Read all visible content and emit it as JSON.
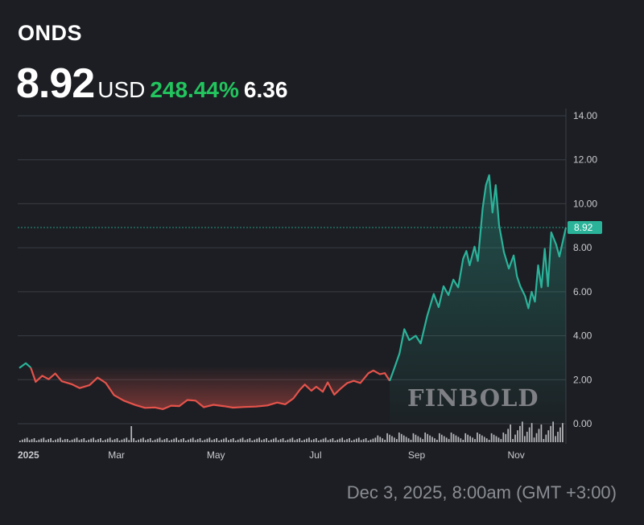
{
  "header": {
    "ticker": "ONDS",
    "price": "8.92",
    "currency": "USD",
    "change_pct": "248.44%",
    "change_abs": "6.36"
  },
  "footer": {
    "timestamp": "Dec 3, 2025, 8:00am (GMT +3:00)"
  },
  "watermark": "FINBOLD",
  "colors": {
    "background": "#1c1e23",
    "up": "#2bb39a",
    "down": "#e5534b",
    "change_positive": "#22c55e",
    "grid": "#3a3d44"
  },
  "chart_data": {
    "type": "line",
    "title": "",
    "xlabel": "",
    "ylabel": "",
    "x_ticks": [
      "2025",
      "Mar",
      "May",
      "Jul",
      "Sep",
      "Nov"
    ],
    "y_ticks": [
      "14.00",
      "12.00",
      "10.00",
      "8.00",
      "6.00",
      "4.00",
      "2.00",
      "0.00"
    ],
    "ylim": [
      0,
      14
    ],
    "grid": true,
    "current_value_label": "8.92",
    "current_value": 8.92,
    "baseline_value": 2.56,
    "series": [
      {
        "values": [
          [
            "2025-01-02",
            2.53
          ],
          [
            "2025-01-06",
            2.75
          ],
          [
            "2025-01-09",
            2.55
          ],
          [
            "2025-01-12",
            1.9
          ],
          [
            "2025-01-16",
            2.18
          ],
          [
            "2025-01-20",
            2.02
          ],
          [
            "2025-01-24",
            2.28
          ],
          [
            "2025-01-28",
            1.93
          ],
          [
            "2025-02-03",
            1.8
          ],
          [
            "2025-02-08",
            1.62
          ],
          [
            "2025-02-14",
            1.75
          ],
          [
            "2025-02-19",
            2.1
          ],
          [
            "2025-02-24",
            1.85
          ],
          [
            "2025-03-01",
            1.3
          ],
          [
            "2025-03-07",
            1.05
          ],
          [
            "2025-03-14",
            0.85
          ],
          [
            "2025-03-20",
            0.72
          ],
          [
            "2025-03-26",
            0.74
          ],
          [
            "2025-03-31",
            0.66
          ],
          [
            "2025-04-05",
            0.82
          ],
          [
            "2025-04-10",
            0.8
          ],
          [
            "2025-04-15",
            1.08
          ],
          [
            "2025-04-20",
            1.05
          ],
          [
            "2025-04-25",
            0.75
          ],
          [
            "2025-05-01",
            0.86
          ],
          [
            "2025-05-07",
            0.8
          ],
          [
            "2025-05-13",
            0.73
          ],
          [
            "2025-05-20",
            0.76
          ],
          [
            "2025-05-27",
            0.78
          ],
          [
            "2025-06-03",
            0.83
          ],
          [
            "2025-06-09",
            0.96
          ],
          [
            "2025-06-14",
            0.88
          ],
          [
            "2025-06-19",
            1.15
          ],
          [
            "2025-06-23",
            1.55
          ],
          [
            "2025-06-26",
            1.78
          ],
          [
            "2025-06-30",
            1.5
          ],
          [
            "2025-07-03",
            1.68
          ],
          [
            "2025-07-07",
            1.45
          ],
          [
            "2025-07-10",
            1.88
          ],
          [
            "2025-07-14",
            1.32
          ],
          [
            "2025-07-18",
            1.6
          ],
          [
            "2025-07-22",
            1.85
          ],
          [
            "2025-07-26",
            1.95
          ],
          [
            "2025-07-30",
            1.85
          ],
          [
            "2025-08-04",
            2.3
          ],
          [
            "2025-08-07",
            2.42
          ],
          [
            "2025-08-11",
            2.25
          ],
          [
            "2025-08-14",
            2.3
          ],
          [
            "2025-08-17",
            1.95
          ],
          [
            "2025-08-20",
            2.56
          ],
          [
            "2025-08-23",
            3.2
          ],
          [
            "2025-08-26",
            4.3
          ],
          [
            "2025-08-29",
            3.8
          ],
          [
            "2025-09-02",
            4.0
          ],
          [
            "2025-09-05",
            3.65
          ],
          [
            "2025-09-09",
            4.9
          ],
          [
            "2025-09-13",
            5.9
          ],
          [
            "2025-09-16",
            5.3
          ],
          [
            "2025-09-19",
            6.25
          ],
          [
            "2025-09-22",
            5.85
          ],
          [
            "2025-09-25",
            6.55
          ],
          [
            "2025-09-28",
            6.2
          ],
          [
            "2025-10-01",
            7.5
          ],
          [
            "2025-10-03",
            7.85
          ],
          [
            "2025-10-05",
            7.2
          ],
          [
            "2025-10-08",
            8.05
          ],
          [
            "2025-10-10",
            7.4
          ],
          [
            "2025-10-13",
            9.8
          ],
          [
            "2025-10-15",
            10.85
          ],
          [
            "2025-10-17",
            11.3
          ],
          [
            "2025-10-19",
            9.6
          ],
          [
            "2025-10-21",
            10.85
          ],
          [
            "2025-10-23",
            9.05
          ],
          [
            "2025-10-26",
            7.8
          ],
          [
            "2025-10-29",
            7.05
          ],
          [
            "2025-11-01",
            7.65
          ],
          [
            "2025-11-03",
            6.7
          ],
          [
            "2025-11-05",
            6.25
          ],
          [
            "2025-11-08",
            5.8
          ],
          [
            "2025-11-10",
            5.25
          ],
          [
            "2025-11-12",
            6.0
          ],
          [
            "2025-11-14",
            5.55
          ],
          [
            "2025-11-16",
            7.2
          ],
          [
            "2025-11-18",
            6.2
          ],
          [
            "2025-11-20",
            7.95
          ],
          [
            "2025-11-22",
            6.25
          ],
          [
            "2025-11-24",
            8.7
          ],
          [
            "2025-11-27",
            8.15
          ],
          [
            "2025-11-29",
            7.6
          ],
          [
            "2025-12-03",
            8.92
          ]
        ]
      }
    ]
  }
}
